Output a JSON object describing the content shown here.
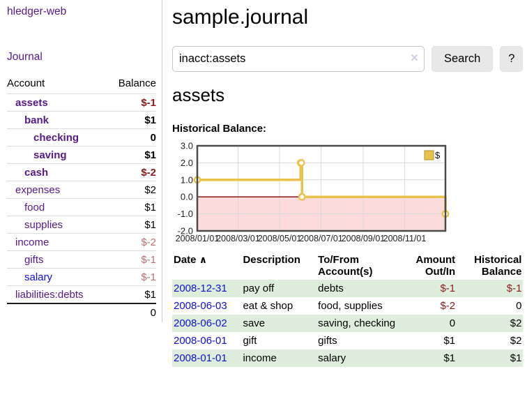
{
  "app": {
    "brand": "hledger-web"
  },
  "nav": {
    "journal": "Journal"
  },
  "sidebar": {
    "headers": {
      "account": "Account",
      "balance": "Balance"
    },
    "rows": [
      {
        "account": "assets",
        "balance": "$-1"
      },
      {
        "account": "bank",
        "balance": "$1"
      },
      {
        "account": "checking",
        "balance": "0"
      },
      {
        "account": "saving",
        "balance": "$1"
      },
      {
        "account": "cash",
        "balance": "$-2"
      },
      {
        "account": "expenses",
        "balance": "$2"
      },
      {
        "account": "food",
        "balance": "$1"
      },
      {
        "account": "supplies",
        "balance": "$1"
      },
      {
        "account": "income",
        "balance": "$-2"
      },
      {
        "account": "gifts",
        "balance": "$-1"
      },
      {
        "account": "salary",
        "balance": "$-1"
      },
      {
        "account": "liabilities:debts",
        "balance": "$1"
      }
    ],
    "total": "0"
  },
  "main": {
    "title": "sample.journal",
    "search": {
      "value": "inacct:assets",
      "clear_icon": "×",
      "button": "Search",
      "help": "?"
    },
    "account_heading": "assets",
    "section_label": "Historical Balance:"
  },
  "chart_data": {
    "type": "line",
    "step": true,
    "title": "Historical Balance:",
    "legend": [
      {
        "label": "$",
        "color": "#e9c24a"
      }
    ],
    "legend_position": "top-right",
    "grid": true,
    "x_domain": [
      "2008-01-01",
      "2008-12-31"
    ],
    "ylim": [
      -2,
      3
    ],
    "ytick_values": [
      3,
      2,
      1,
      0,
      -1,
      -2
    ],
    "yticks": [
      "3.0",
      "2.0",
      "1.0",
      "0.0",
      "-1.0",
      "-2.0"
    ],
    "xticks": [
      {
        "label": "2008/01/01",
        "date": "2008-01-01"
      },
      {
        "label": "2008/03/01",
        "date": "2008-03-01"
      },
      {
        "label": "2008/05/01",
        "date": "2008-05-01"
      },
      {
        "label": "2008/07/01",
        "date": "2008-07-01"
      },
      {
        "label": "2008/09/01",
        "date": "2008-09-01"
      },
      {
        "label": "2008/11/01",
        "date": "2008-11-01"
      }
    ],
    "series": [
      {
        "name": "$",
        "points": [
          {
            "date": "2008-01-01",
            "value": 1
          },
          {
            "date": "2008-06-01",
            "value": 2
          },
          {
            "date": "2008-06-02",
            "value": 2
          },
          {
            "date": "2008-06-03",
            "value": 0
          },
          {
            "date": "2008-12-31",
            "value": -1
          }
        ]
      }
    ],
    "colors": {
      "line": "#e9c24a",
      "legend_box_border": "#b0912e",
      "marker_fill": "#ffffff",
      "negative_region": "#fbdbdb",
      "zero_line": "#7a0000",
      "grid": "#d9d9d9",
      "border": "#4a4a4a",
      "tick_text": "#222222"
    }
  },
  "register": {
    "headers": {
      "date": "Date",
      "sort_icon": "∧",
      "description": "Description",
      "accounts": "To/From Account(s)",
      "amount": "Amount Out/In",
      "balance": "Historical Balance"
    },
    "rows": [
      {
        "date": "2008-12-31",
        "description": "pay off",
        "accounts": "debts",
        "amount": "$-1",
        "balance": "$-1"
      },
      {
        "date": "2008-06-03",
        "description": "eat & shop",
        "accounts": "food, supplies",
        "amount": "$-2",
        "balance": "0"
      },
      {
        "date": "2008-06-02",
        "description": "save",
        "accounts": "saving, checking",
        "amount": "0",
        "balance": "$2"
      },
      {
        "date": "2008-06-01",
        "description": "gift",
        "accounts": "gifts",
        "amount": "$1",
        "balance": "$2"
      },
      {
        "date": "2008-01-01",
        "description": "income",
        "accounts": "salary",
        "amount": "$1",
        "balance": "$1"
      }
    ]
  }
}
